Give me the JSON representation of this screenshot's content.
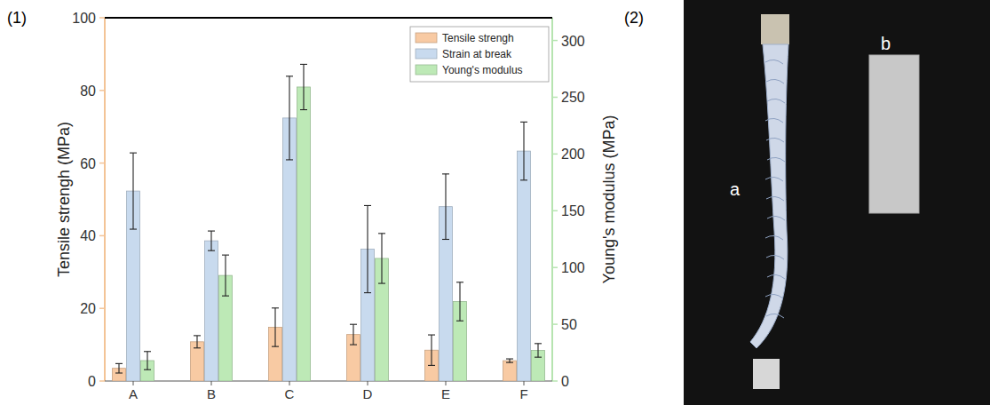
{
  "chart_data": {
    "type": "bar",
    "categories": [
      "A",
      "B",
      "C",
      "D",
      "E",
      "F"
    ],
    "ylabel": "Tensile strengh (MPa)",
    "y2label": "Young's modulus (MPa)",
    "ylim": [
      0,
      100
    ],
    "yticks": [
      0,
      20,
      40,
      60,
      80,
      100
    ],
    "y2lim": [
      0,
      320
    ],
    "y2ticks": [
      0,
      50,
      100,
      150,
      200,
      250,
      300
    ],
    "legend": "top-right",
    "series": [
      {
        "name": "Tensile strengh",
        "color": "#f8caa3",
        "values": [
          3.5,
          10.8,
          14.8,
          12.8,
          8.5,
          5.6
        ],
        "errors": [
          1.3,
          1.7,
          5.3,
          2.8,
          4.2,
          0.5
        ]
      },
      {
        "name": "Strain at break",
        "color": "#c8daee",
        "values": [
          52.3,
          38.6,
          72.4,
          36.3,
          48.0,
          63.3
        ],
        "errors": [
          10.5,
          2.7,
          11.5,
          12.0,
          9.0,
          8.0
        ]
      },
      {
        "name": "Young's modulus",
        "color": "#bde9b6",
        "axis": "y2",
        "values": [
          18,
          93,
          259,
          108,
          70,
          27
        ],
        "errors": [
          8,
          18,
          20,
          22,
          17,
          6
        ]
      }
    ]
  },
  "figure": {
    "panel_labels": [
      "(1)",
      "(2)"
    ],
    "photo_labels": [
      "a",
      "b"
    ]
  }
}
